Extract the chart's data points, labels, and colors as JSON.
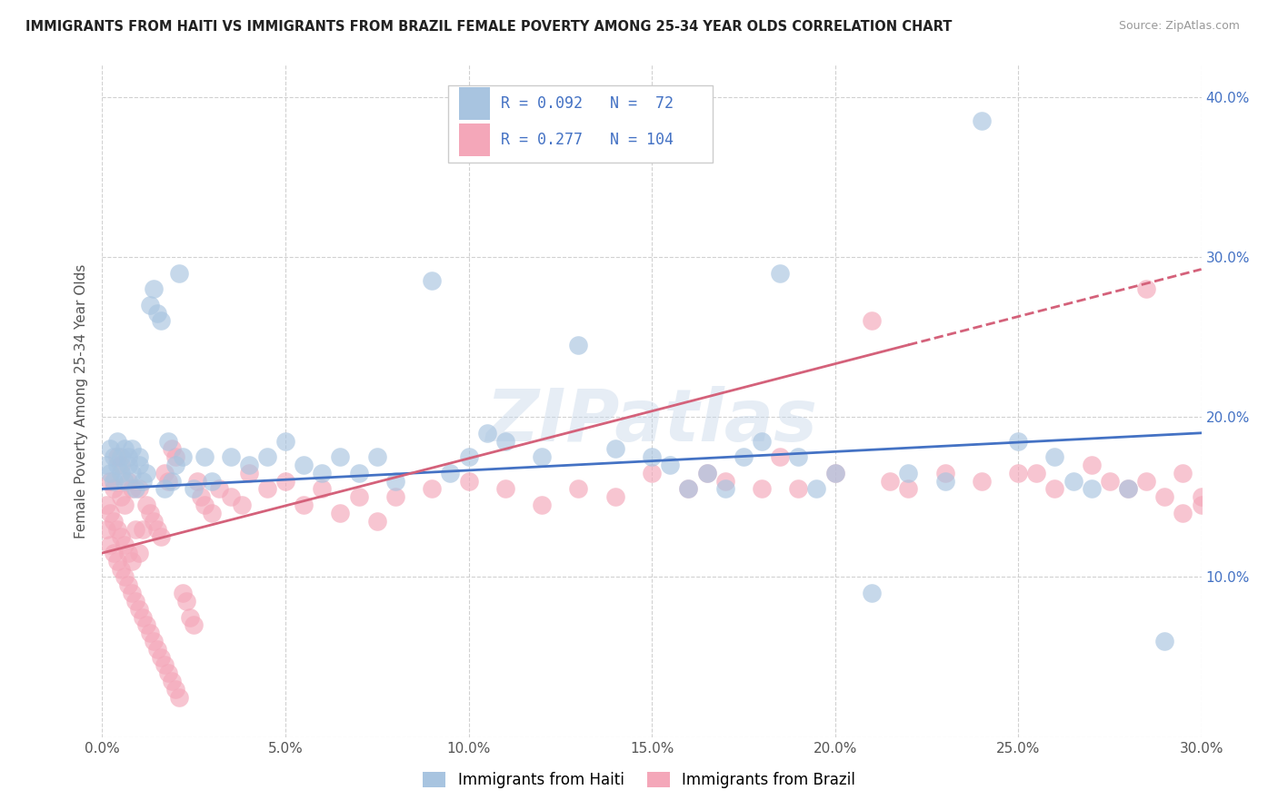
{
  "title": "IMMIGRANTS FROM HAITI VS IMMIGRANTS FROM BRAZIL FEMALE POVERTY AMONG 25-34 YEAR OLDS CORRELATION CHART",
  "source": "Source: ZipAtlas.com",
  "ylabel": "Female Poverty Among 25-34 Year Olds",
  "xlim": [
    0.0,
    0.3
  ],
  "ylim": [
    0.0,
    0.42
  ],
  "xticks": [
    0.0,
    0.05,
    0.1,
    0.15,
    0.2,
    0.25,
    0.3
  ],
  "xticklabels": [
    "0.0%",
    "5.0%",
    "10.0%",
    "15.0%",
    "20.0%",
    "25.0%",
    "30.0%"
  ],
  "yticks_left": [],
  "yticks_right": [
    0.1,
    0.2,
    0.3,
    0.4
  ],
  "yticklabels_right": [
    "10.0%",
    "20.0%",
    "30.0%",
    "40.0%"
  ],
  "haiti_color": "#a8c4e0",
  "brazil_color": "#f4a7b9",
  "haiti_line_color": "#4472c4",
  "brazil_line_color": "#d4617a",
  "haiti_R": 0.092,
  "haiti_N": 72,
  "brazil_R": 0.277,
  "brazil_N": 104,
  "watermark": "ZIPatlas",
  "background_color": "#ffffff",
  "grid_color": "#cccccc",
  "legend_label_haiti": "Immigrants from Haiti",
  "legend_label_brazil": "Immigrants from Brazil",
  "haiti_scatter_x": [
    0.001,
    0.002,
    0.002,
    0.003,
    0.003,
    0.004,
    0.004,
    0.005,
    0.005,
    0.006,
    0.006,
    0.007,
    0.007,
    0.008,
    0.008,
    0.009,
    0.01,
    0.01,
    0.011,
    0.012,
    0.013,
    0.014,
    0.015,
    0.016,
    0.017,
    0.018,
    0.019,
    0.02,
    0.021,
    0.022,
    0.025,
    0.028,
    0.03,
    0.035,
    0.04,
    0.045,
    0.05,
    0.055,
    0.06,
    0.065,
    0.07,
    0.075,
    0.08,
    0.09,
    0.095,
    0.1,
    0.105,
    0.11,
    0.12,
    0.13,
    0.14,
    0.15,
    0.155,
    0.16,
    0.165,
    0.17,
    0.175,
    0.18,
    0.185,
    0.19,
    0.195,
    0.2,
    0.21,
    0.22,
    0.23,
    0.24,
    0.25,
    0.26,
    0.265,
    0.27,
    0.28,
    0.29
  ],
  "haiti_scatter_y": [
    0.17,
    0.18,
    0.165,
    0.175,
    0.16,
    0.17,
    0.185,
    0.165,
    0.175,
    0.18,
    0.16,
    0.17,
    0.175,
    0.165,
    0.18,
    0.155,
    0.17,
    0.175,
    0.16,
    0.165,
    0.27,
    0.28,
    0.265,
    0.26,
    0.155,
    0.185,
    0.16,
    0.17,
    0.29,
    0.175,
    0.155,
    0.175,
    0.16,
    0.175,
    0.17,
    0.175,
    0.185,
    0.17,
    0.165,
    0.175,
    0.165,
    0.175,
    0.16,
    0.285,
    0.165,
    0.175,
    0.19,
    0.185,
    0.175,
    0.245,
    0.18,
    0.175,
    0.17,
    0.155,
    0.165,
    0.155,
    0.175,
    0.185,
    0.29,
    0.175,
    0.155,
    0.165,
    0.09,
    0.165,
    0.16,
    0.385,
    0.185,
    0.175,
    0.16,
    0.155,
    0.155,
    0.06
  ],
  "brazil_scatter_x": [
    0.001,
    0.001,
    0.002,
    0.002,
    0.002,
    0.003,
    0.003,
    0.003,
    0.004,
    0.004,
    0.004,
    0.005,
    0.005,
    0.005,
    0.005,
    0.006,
    0.006,
    0.006,
    0.007,
    0.007,
    0.007,
    0.008,
    0.008,
    0.008,
    0.009,
    0.009,
    0.01,
    0.01,
    0.01,
    0.011,
    0.011,
    0.012,
    0.012,
    0.013,
    0.013,
    0.014,
    0.014,
    0.015,
    0.015,
    0.016,
    0.016,
    0.017,
    0.017,
    0.018,
    0.018,
    0.019,
    0.019,
    0.02,
    0.02,
    0.021,
    0.022,
    0.023,
    0.024,
    0.025,
    0.026,
    0.027,
    0.028,
    0.03,
    0.032,
    0.035,
    0.038,
    0.04,
    0.045,
    0.05,
    0.055,
    0.06,
    0.065,
    0.07,
    0.075,
    0.08,
    0.09,
    0.1,
    0.11,
    0.12,
    0.13,
    0.14,
    0.15,
    0.16,
    0.165,
    0.17,
    0.18,
    0.185,
    0.19,
    0.2,
    0.21,
    0.215,
    0.22,
    0.23,
    0.24,
    0.25,
    0.255,
    0.26,
    0.27,
    0.275,
    0.28,
    0.285,
    0.29,
    0.295,
    0.3,
    0.305,
    0.285,
    0.295,
    0.3,
    0.305
  ],
  "brazil_scatter_y": [
    0.13,
    0.145,
    0.12,
    0.14,
    0.16,
    0.115,
    0.135,
    0.155,
    0.11,
    0.13,
    0.175,
    0.105,
    0.125,
    0.15,
    0.17,
    0.1,
    0.12,
    0.145,
    0.095,
    0.115,
    0.16,
    0.09,
    0.11,
    0.155,
    0.085,
    0.13,
    0.08,
    0.115,
    0.155,
    0.075,
    0.13,
    0.07,
    0.145,
    0.065,
    0.14,
    0.06,
    0.135,
    0.055,
    0.13,
    0.05,
    0.125,
    0.045,
    0.165,
    0.04,
    0.16,
    0.035,
    0.18,
    0.03,
    0.175,
    0.025,
    0.09,
    0.085,
    0.075,
    0.07,
    0.16,
    0.15,
    0.145,
    0.14,
    0.155,
    0.15,
    0.145,
    0.165,
    0.155,
    0.16,
    0.145,
    0.155,
    0.14,
    0.15,
    0.135,
    0.15,
    0.155,
    0.16,
    0.155,
    0.145,
    0.155,
    0.15,
    0.165,
    0.155,
    0.165,
    0.16,
    0.155,
    0.175,
    0.155,
    0.165,
    0.26,
    0.16,
    0.155,
    0.165,
    0.16,
    0.165,
    0.165,
    0.155,
    0.17,
    0.16,
    0.155,
    0.28,
    0.15,
    0.14,
    0.145,
    0.155,
    0.16,
    0.165,
    0.15,
    0.14
  ]
}
